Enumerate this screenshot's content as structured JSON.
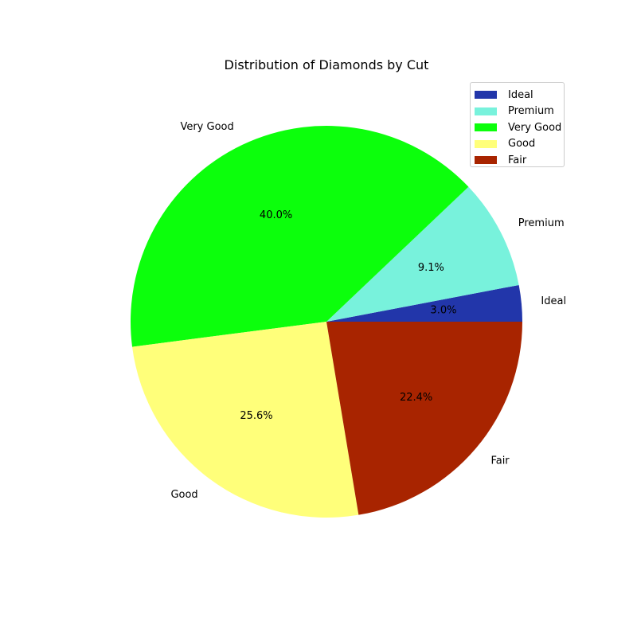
{
  "chart_data": {
    "type": "pie",
    "title": "Distribution of Diamonds by Cut",
    "categories": [
      "Ideal",
      "Premium",
      "Very Good",
      "Good",
      "Fair"
    ],
    "values": [
      3.0,
      9.1,
      40.0,
      25.6,
      22.4
    ],
    "value_labels": [
      "3.0%",
      "9.1%",
      "40.0%",
      "25.6%",
      "22.4%"
    ],
    "colors": [
      "#2236aa",
      "#78f2dc",
      "#0cff0c",
      "#ffff7a",
      "#a82400"
    ],
    "start_angle_deg": 0,
    "direction": "counterclockwise",
    "legend": {
      "position": "top-right",
      "entries": [
        "Ideal",
        "Premium",
        "Very Good",
        "Good",
        "Fair"
      ]
    }
  }
}
